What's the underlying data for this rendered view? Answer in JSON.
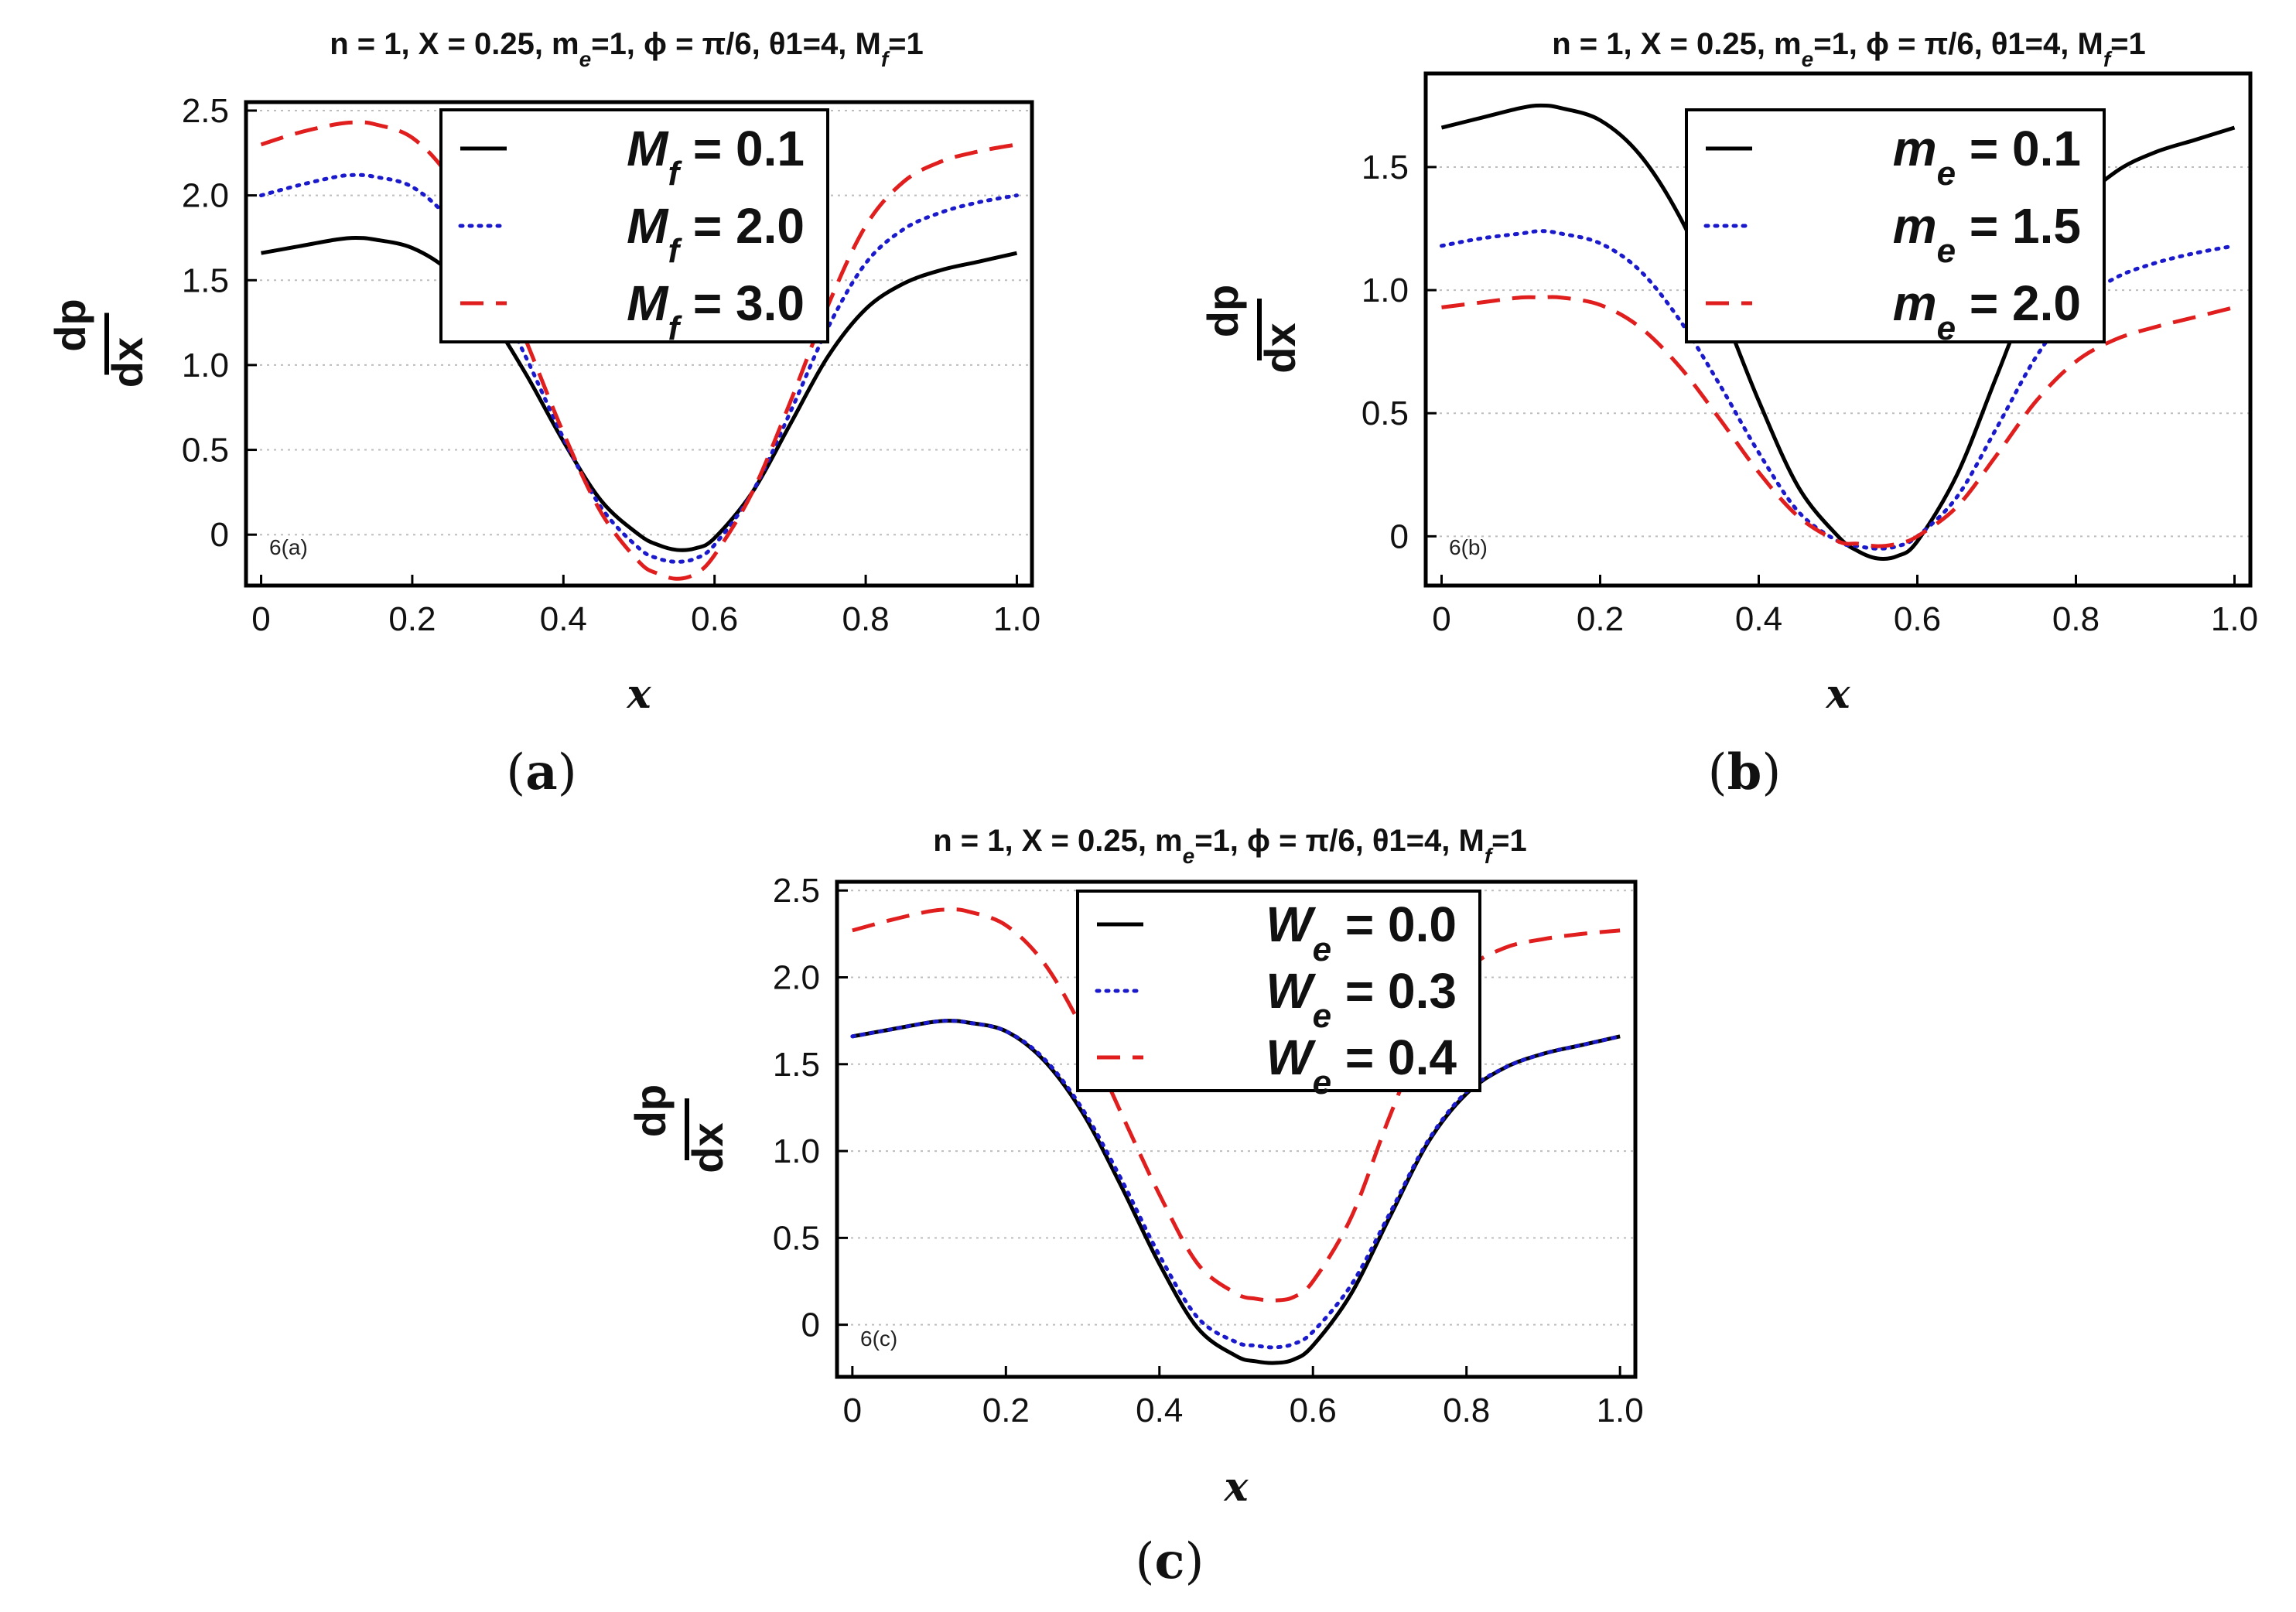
{
  "figure": {
    "x_sample": [
      0,
      0.05,
      0.1,
      0.125,
      0.15,
      0.2,
      0.25,
      0.3,
      0.35,
      0.4,
      0.45,
      0.5,
      0.525,
      0.55,
      0.575,
      0.6,
      0.65,
      0.7,
      0.75,
      0.8,
      0.85,
      0.9,
      0.95,
      1.0
    ]
  },
  "chart_data": [
    {
      "type": "line",
      "panel": "a",
      "caption": "a",
      "title": "n = 1, X = 0.25, m",
      "title_sub": "e",
      "title_mid": "=1, ϕ = π/6, θ1=4, M",
      "title_sub2": "f",
      "title_end": "=1",
      "xlabel": "x",
      "ylabel_num": "dp",
      "ylabel_den": "dx",
      "annotation": "6(a)",
      "xlim": [
        -0.02,
        1.02
      ],
      "ylim": [
        -0.3,
        2.55
      ],
      "xticks": [
        0,
        0.2,
        0.4,
        0.6,
        0.8,
        1.0
      ],
      "xtick_labels": [
        "0",
        "0.2",
        "0.4",
        "0.6",
        "0.8",
        "1.0"
      ],
      "yticks": [
        0,
        0.5,
        1.0,
        1.5,
        2.0,
        2.5
      ],
      "ytick_labels": [
        "0",
        "0.5",
        "1.0",
        "1.5",
        "2.0",
        "2.5"
      ],
      "grid": true,
      "legend": "top-center",
      "series": [
        {
          "sym": "M",
          "sub": "f",
          "text": " = 0.1",
          "style": "solid",
          "color": "#000000",
          "y": [
            1.66,
            1.7,
            1.74,
            1.75,
            1.74,
            1.69,
            1.55,
            1.3,
            0.95,
            0.55,
            0.2,
            0.0,
            -0.06,
            -0.09,
            -0.08,
            -0.02,
            0.25,
            0.65,
            1.05,
            1.33,
            1.48,
            1.56,
            1.61,
            1.66
          ]
        },
        {
          "sym": "M",
          "sub": "f",
          "text": " = 2.0",
          "style": "dotted",
          "color": "#1a1acc",
          "y": [
            2.0,
            2.06,
            2.11,
            2.12,
            2.11,
            2.05,
            1.85,
            1.5,
            1.05,
            0.57,
            0.16,
            -0.08,
            -0.14,
            -0.16,
            -0.14,
            -0.06,
            0.25,
            0.72,
            1.22,
            1.6,
            1.8,
            1.9,
            1.96,
            2.0
          ]
        },
        {
          "sym": "M",
          "sub": "f",
          "text": " = 3.0",
          "style": "dashed",
          "color": "#e01e1e",
          "y": [
            2.3,
            2.37,
            2.42,
            2.43,
            2.42,
            2.34,
            2.1,
            1.68,
            1.15,
            0.6,
            0.13,
            -0.16,
            -0.23,
            -0.26,
            -0.23,
            -0.12,
            0.25,
            0.78,
            1.35,
            1.82,
            2.08,
            2.2,
            2.26,
            2.3
          ]
        }
      ]
    },
    {
      "type": "line",
      "panel": "b",
      "caption": "b",
      "title": "n = 1, X = 0.25, m",
      "title_sub": "e",
      "title_mid": "=1, ϕ = π/6, θ1=4, M",
      "title_sub2": "f",
      "title_end": "=1",
      "xlabel": "x",
      "ylabel_num": "dp",
      "ylabel_den": "dx",
      "annotation": "6(b)",
      "xlim": [
        -0.02,
        1.02
      ],
      "ylim": [
        -0.2,
        1.88
      ],
      "xticks": [
        0,
        0.2,
        0.4,
        0.6,
        0.8,
        1.0
      ],
      "xtick_labels": [
        "0",
        "0.2",
        "0.4",
        "0.6",
        "0.8",
        "1.0"
      ],
      "yticks": [
        0,
        0.5,
        1.0,
        1.5
      ],
      "ytick_labels": [
        "0",
        "0.5",
        "1.0",
        "1.5"
      ],
      "grid": true,
      "legend": "top-right",
      "series": [
        {
          "sym": "m",
          "sub": "e",
          "text": " = 0.1",
          "style": "solid",
          "color": "#000000",
          "y": [
            1.66,
            1.7,
            1.74,
            1.75,
            1.74,
            1.69,
            1.55,
            1.3,
            0.95,
            0.55,
            0.2,
            0.0,
            -0.06,
            -0.09,
            -0.08,
            -0.02,
            0.25,
            0.65,
            1.05,
            1.33,
            1.48,
            1.56,
            1.61,
            1.66
          ]
        },
        {
          "sym": "m",
          "sub": "e",
          "text": " = 1.5",
          "style": "dotted",
          "color": "#1a1acc",
          "y": [
            1.18,
            1.21,
            1.23,
            1.24,
            1.23,
            1.19,
            1.08,
            0.88,
            0.62,
            0.34,
            0.1,
            -0.02,
            -0.04,
            -0.05,
            -0.04,
            0.0,
            0.16,
            0.44,
            0.73,
            0.94,
            1.05,
            1.11,
            1.15,
            1.18
          ]
        },
        {
          "sym": "m",
          "sub": "e",
          "text": " = 2.0",
          "style": "dashed",
          "color": "#e01e1e",
          "y": [
            0.93,
            0.95,
            0.97,
            0.97,
            0.97,
            0.94,
            0.85,
            0.69,
            0.48,
            0.26,
            0.08,
            -0.02,
            -0.03,
            -0.04,
            -0.03,
            0.0,
            0.12,
            0.33,
            0.55,
            0.71,
            0.8,
            0.85,
            0.89,
            0.93
          ]
        }
      ]
    },
    {
      "type": "line",
      "panel": "c",
      "caption": "c",
      "title": "n = 1, X = 0.25, m",
      "title_sub": "e",
      "title_mid": "=1, ϕ = π/6, θ1=4, M",
      "title_sub2": "f",
      "title_end": "=1",
      "xlabel": "x",
      "ylabel_num": "dp",
      "ylabel_den": "dx",
      "annotation": "6(c)",
      "xlim": [
        -0.02,
        1.02
      ],
      "ylim": [
        -0.3,
        2.55
      ],
      "xticks": [
        0,
        0.2,
        0.4,
        0.6,
        0.8,
        1.0
      ],
      "xtick_labels": [
        "0",
        "0.2",
        "0.4",
        "0.6",
        "0.8",
        "1.0"
      ],
      "yticks": [
        0,
        0.5,
        1.0,
        1.5,
        2.0,
        2.5
      ],
      "ytick_labels": [
        "0",
        "0.5",
        "1.0",
        "1.5",
        "2.0",
        "2.5"
      ],
      "grid": true,
      "legend": "top-center",
      "series": [
        {
          "sym": "W",
          "sub": "e",
          "text": " = 0.0",
          "style": "solid",
          "color": "#000000",
          "y": [
            1.66,
            1.7,
            1.74,
            1.75,
            1.74,
            1.69,
            1.52,
            1.22,
            0.8,
            0.35,
            -0.02,
            -0.18,
            -0.21,
            -0.22,
            -0.2,
            -0.12,
            0.18,
            0.62,
            1.05,
            1.33,
            1.48,
            1.56,
            1.61,
            1.66
          ]
        },
        {
          "sym": "W",
          "sub": "e",
          "text": " = 0.3",
          "style": "dotted",
          "color": "#1a1acc",
          "y": [
            1.66,
            1.7,
            1.74,
            1.75,
            1.74,
            1.69,
            1.53,
            1.24,
            0.84,
            0.4,
            0.04,
            -0.1,
            -0.12,
            -0.13,
            -0.11,
            -0.04,
            0.23,
            0.64,
            1.06,
            1.34,
            1.48,
            1.56,
            1.61,
            1.66
          ]
        },
        {
          "sym": "W",
          "sub": "e",
          "text": " = 0.4",
          "style": "dashed",
          "color": "#e01e1e",
          "y": [
            2.27,
            2.33,
            2.38,
            2.39,
            2.38,
            2.3,
            2.08,
            1.7,
            1.22,
            0.75,
            0.35,
            0.18,
            0.15,
            0.14,
            0.16,
            0.25,
            0.62,
            1.2,
            1.72,
            2.04,
            2.17,
            2.22,
            2.25,
            2.27
          ]
        }
      ]
    }
  ]
}
